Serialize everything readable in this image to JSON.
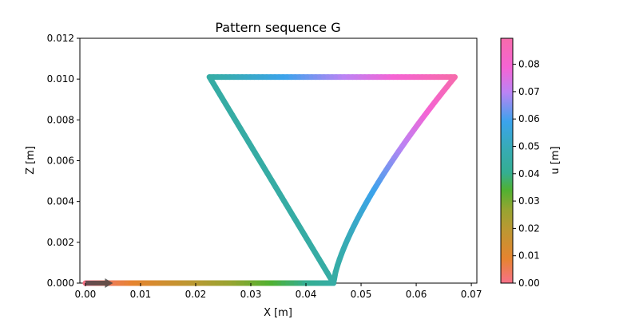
{
  "chart_data": {
    "type": "scatter",
    "title": "Pattern sequence G",
    "xlabel": "X [m]",
    "ylabel": "Z [m]",
    "xlim": [
      -0.001,
      0.071
    ],
    "ylim": [
      0,
      0.012
    ],
    "xticks": [
      0.0,
      0.01,
      0.02,
      0.03,
      0.04,
      0.05,
      0.06,
      0.07
    ],
    "xtick_labels": [
      "0.00",
      "0.01",
      "0.02",
      "0.03",
      "0.04",
      "0.05",
      "0.06",
      "0.07"
    ],
    "yticks": [
      0.0,
      0.002,
      0.004,
      0.006,
      0.008,
      0.01,
      0.012
    ],
    "ytick_labels": [
      "0.000",
      "0.002",
      "0.004",
      "0.006",
      "0.008",
      "0.010",
      "0.012"
    ],
    "grid": false,
    "colorbar": {
      "label": "u [m]",
      "range": [
        0,
        0.0895
      ],
      "ticks": [
        0.0,
        0.01,
        0.02,
        0.03,
        0.04,
        0.05,
        0.06,
        0.07,
        0.08
      ],
      "tick_labels": [
        "0.00",
        "0.01",
        "0.02",
        "0.03",
        "0.04",
        "0.05",
        "0.06",
        "0.07",
        "0.08"
      ],
      "colormap": [
        {
          "pos": 0.0,
          "color": "#f77189"
        },
        {
          "pos": 0.1,
          "color": "#e6842f"
        },
        {
          "pos": 0.22,
          "color": "#bb9832"
        },
        {
          "pos": 0.3,
          "color": "#97a431"
        },
        {
          "pos": 0.38,
          "color": "#50b131"
        },
        {
          "pos": 0.45,
          "color": "#34ae91"
        },
        {
          "pos": 0.55,
          "color": "#37abb5"
        },
        {
          "pos": 0.66,
          "color": "#3ba3ec"
        },
        {
          "pos": 0.78,
          "color": "#bb83f4"
        },
        {
          "pos": 0.88,
          "color": "#f564d4"
        },
        {
          "pos": 1.0,
          "color": "#f66bab"
        }
      ]
    },
    "path_segments": [
      {
        "kind": "line",
        "from": [
          0.0,
          0.0
        ],
        "to": [
          0.045,
          0.0
        ],
        "u_from": 0.0,
        "u_to": 0.045
      },
      {
        "kind": "line",
        "from": [
          0.045,
          0.0
        ],
        "to": [
          0.0225,
          0.0101
        ],
        "u_from": 0.045,
        "u_to": 0.045
      },
      {
        "kind": "line",
        "from": [
          0.0225,
          0.0101
        ],
        "to": [
          0.067,
          0.0101
        ],
        "u_from": 0.045,
        "u_to": 0.0895
      },
      {
        "kind": "curve",
        "from": [
          0.067,
          0.0101
        ],
        "to": [
          0.045,
          0.0
        ],
        "u_from": 0.0895,
        "u_to": 0.045
      }
    ],
    "start_arrow": {
      "from": [
        0.0,
        0.0
      ],
      "to": [
        0.005,
        0.0
      ],
      "color": "#444444"
    }
  }
}
